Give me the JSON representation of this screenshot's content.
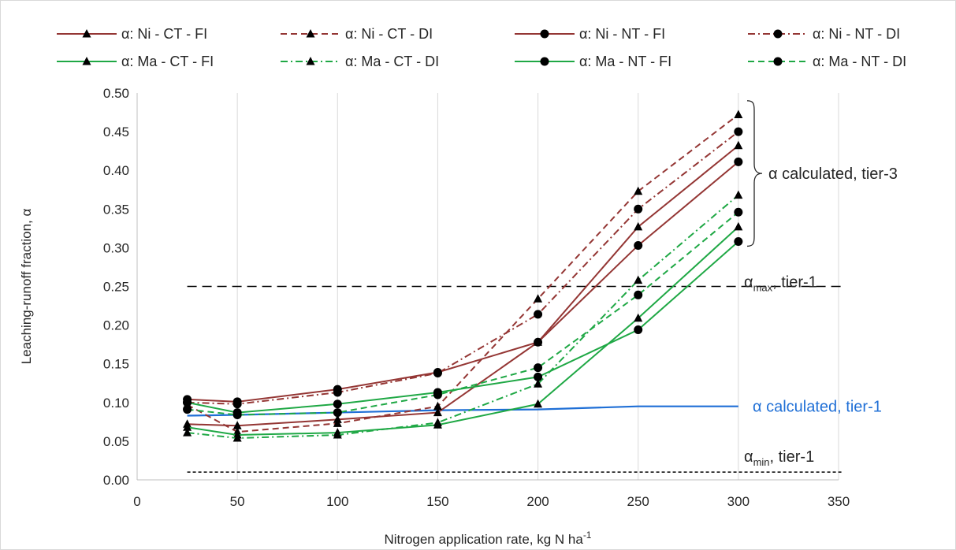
{
  "chart_data": {
    "type": "line",
    "xlabel": "Nitrogen application rate, kg N ha",
    "xlabel_sup": "-1",
    "ylabel": "Leaching-runoff fraction, α",
    "xlim": [
      0,
      350
    ],
    "ylim": [
      0,
      0.5
    ],
    "xticks": [
      "0",
      "50",
      "100",
      "150",
      "200",
      "250",
      "300",
      "350"
    ],
    "yticks": [
      "0.00",
      "0.05",
      "0.10",
      "0.15",
      "0.20",
      "0.25",
      "0.30",
      "0.35",
      "0.40",
      "0.45",
      "0.50"
    ],
    "grid": "vertical",
    "legend_position": "top",
    "x": [
      25,
      50,
      100,
      150,
      200,
      250,
      300
    ],
    "series": [
      {
        "name": "α: Ni - CT - FI",
        "color": "#943634",
        "dash": "solid",
        "marker": "triangle",
        "values": [
          0.072,
          0.07,
          0.078,
          0.087,
          0.178,
          0.327,
          0.432
        ]
      },
      {
        "name": "α: Ni - CT - DI",
        "color": "#943634",
        "dash": "dash",
        "marker": "triangle",
        "values": [
          0.097,
          0.062,
          0.073,
          0.095,
          0.234,
          0.373,
          0.472
        ]
      },
      {
        "name": "α: Ni - NT - FI",
        "color": "#943634",
        "dash": "solid",
        "marker": "circle",
        "values": [
          0.104,
          0.101,
          0.117,
          0.139,
          0.178,
          0.303,
          0.411
        ]
      },
      {
        "name": "α: Ni - NT - DI",
        "color": "#943634",
        "dash": "dashdot",
        "marker": "circle",
        "values": [
          0.1,
          0.098,
          0.113,
          0.138,
          0.214,
          0.35,
          0.45
        ]
      },
      {
        "name": "α: Ma - CT - FI",
        "color": "#1fa845",
        "dash": "solid",
        "marker": "triangle",
        "values": [
          0.068,
          0.058,
          0.061,
          0.071,
          0.098,
          0.209,
          0.327
        ]
      },
      {
        "name": "α: Ma - CT - DI",
        "color": "#1fa845",
        "dash": "dashdot",
        "marker": "triangle",
        "values": [
          0.061,
          0.054,
          0.058,
          0.074,
          0.124,
          0.258,
          0.368
        ]
      },
      {
        "name": "α: Ma - NT - FI",
        "color": "#1fa845",
        "dash": "solid",
        "marker": "circle",
        "values": [
          0.1,
          0.087,
          0.098,
          0.113,
          0.133,
          0.194,
          0.308
        ]
      },
      {
        "name": "α: Ma - NT - DI",
        "color": "#1fa845",
        "dash": "dash",
        "marker": "circle",
        "values": [
          0.091,
          0.084,
          0.087,
          0.11,
          0.145,
          0.239,
          0.346
        ]
      }
    ],
    "tier1": {
      "color": "#1f6fd6",
      "values": [
        0.083,
        0.084,
        0.087,
        0.09,
        0.091,
        0.095,
        0.095
      ],
      "label": "α calculated, tier-1"
    },
    "alpha_max": {
      "value": 0.25,
      "label_base": "α",
      "label_sub": "max",
      "label_rest": ", tier-1"
    },
    "alpha_min": {
      "value": 0.01,
      "label_base": "α",
      "label_sub": "min",
      "label_rest": ", tier-1"
    },
    "tier3_label": "α calculated, tier-3"
  }
}
